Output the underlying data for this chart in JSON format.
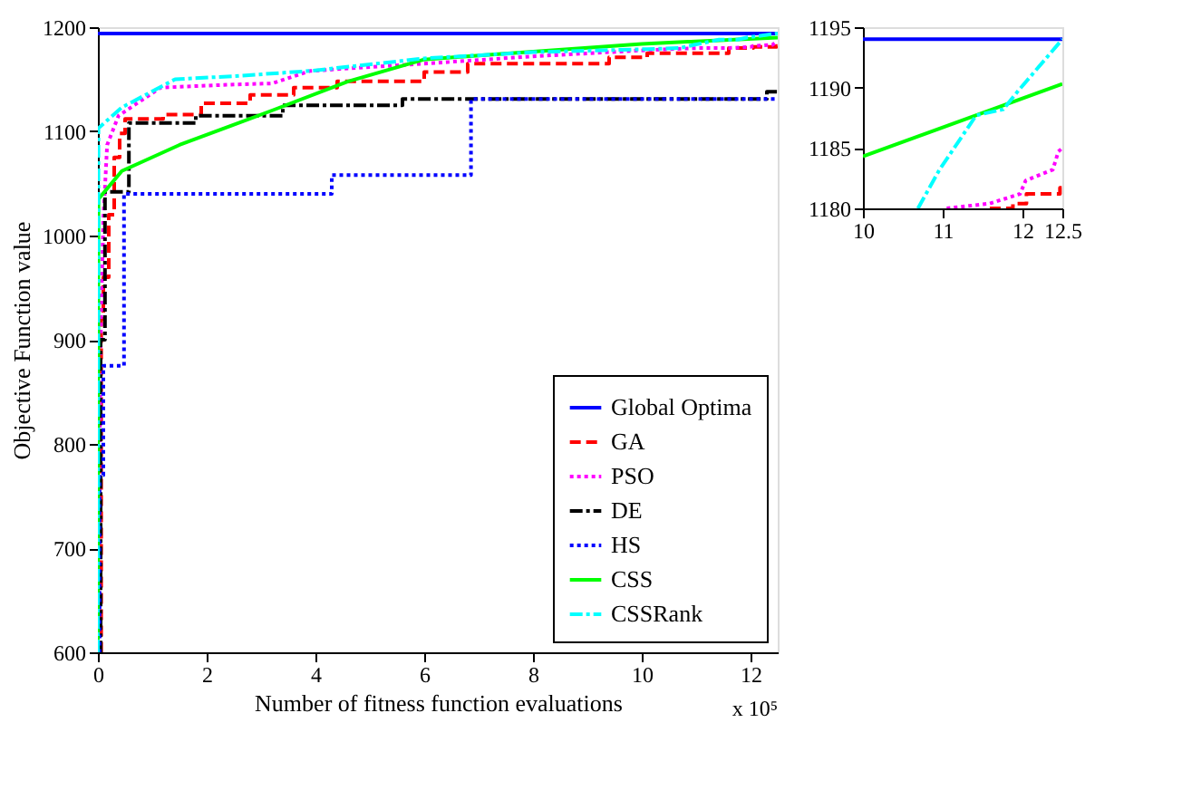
{
  "chart_data": [
    {
      "type": "line",
      "xlabel": "Number of fitness function evaluations",
      "ylabel": "Objective Function value",
      "xlim": [
        0,
        12.5
      ],
      "ylim": [
        600,
        1200
      ],
      "xticks": [
        0,
        2,
        4,
        6,
        8,
        10,
        12
      ],
      "yticks": [
        600,
        700,
        800,
        900,
        1000,
        1100,
        1200
      ],
      "grid": false,
      "legend": "bottom right",
      "annotations": [
        "x 10⁵"
      ],
      "series": [
        {
          "name": "Global Optima",
          "color": "#0000ff",
          "type": "line",
          "line_style": "solid",
          "x": [
            0,
            12.5
          ],
          "values": [
            1194,
            1194
          ]
        },
        {
          "name": "GA",
          "color": "#ff0000",
          "type": "step",
          "line_style": "dashed",
          "x": [
            0.05,
            0.06,
            0.1,
            0.2,
            0.3,
            0.4,
            0.5,
            1.2,
            1.9,
            2.8,
            3.6,
            4.4,
            6.0,
            6.8,
            9.4,
            10.1,
            11.6,
            12.05,
            12.47,
            12.5
          ],
          "values": [
            600,
            920,
            960,
            1020,
            1075,
            1098,
            1112,
            1116,
            1127,
            1135,
            1142,
            1148,
            1157,
            1165,
            1171,
            1175,
            1180,
            1181,
            1182,
            1182
          ]
        },
        {
          "name": "PSO",
          "color": "#ff00ff",
          "type": "line",
          "line_style": "dotted",
          "x": [
            0,
            0.05,
            0.1,
            0.17,
            0.38,
            1.15,
            2.5,
            3.2,
            3.9,
            6.0,
            8,
            10.1,
            11.05,
            11.6,
            12.0,
            12.05,
            12.4,
            12.45,
            12.5
          ],
          "values": [
            600,
            900,
            1015,
            1087,
            1115,
            1142,
            1145,
            1146,
            1158,
            1165,
            1172,
            1178,
            1180,
            1180,
            1181,
            1182,
            1183,
            1185,
            1185
          ]
        },
        {
          "name": "DE",
          "color": "#000000",
          "type": "step",
          "line_style": "dashdot",
          "x": [
            0.03,
            0.05,
            0.13,
            0.57,
            1.8,
            3.4,
            5.6,
            12.3,
            12.5
          ],
          "values": [
            600,
            900,
            1042,
            1108,
            1115,
            1125,
            1131,
            1138,
            1138
          ]
        },
        {
          "name": "HS",
          "color": "#0000ff",
          "type": "step",
          "line_style": "dotted",
          "x": [
            0.02,
            0.03,
            0.1,
            0.48,
            4.3,
            6.86,
            12.5
          ],
          "values": [
            600,
            770,
            875,
            1040,
            1058,
            1131,
            1131
          ]
        },
        {
          "name": "CSS",
          "color": "#00ff00",
          "type": "line",
          "line_style": "solid",
          "x": [
            0,
            0.01,
            0.44,
            1.5,
            3.2,
            4.6,
            6.0,
            7.3,
            10,
            12.5
          ],
          "values": [
            600,
            1035,
            1062,
            1087,
            1120,
            1148,
            1169,
            1174,
            1184,
            1190
          ]
        },
        {
          "name": "CSSRank",
          "color": "#00ffff",
          "type": "line",
          "line_style": "dashdot",
          "x": [
            0,
            0.01,
            0.44,
            1.42,
            2.5,
            3.9,
            6.0,
            8,
            10.1,
            10.7,
            10.96,
            11.42,
            11.76,
            11.93,
            12.5
          ],
          "values": [
            600,
            1103,
            1123,
            1150,
            1153,
            1158,
            1170,
            1176,
            1179,
            1180,
            1183,
            1188,
            1188,
            1190,
            1194
          ]
        }
      ]
    },
    {
      "type": "line",
      "xlim": [
        10,
        12.5
      ],
      "ylim": [
        1180,
        1195
      ],
      "xticks": [
        10,
        11,
        12,
        12.5
      ],
      "yticks": [
        1180,
        1185,
        1190,
        1195
      ],
      "grid": false,
      "series": [
        {
          "color": "#0000ff",
          "type": "line",
          "line_style": "solid",
          "x": [
            10,
            12.5
          ],
          "values": [
            1194,
            1194
          ]
        },
        {
          "color": "#00ff00",
          "type": "line",
          "line_style": "solid",
          "x": [
            10,
            12.5
          ],
          "values": [
            1184.3,
            1190.3
          ]
        },
        {
          "color": "#00ffff",
          "type": "line",
          "line_style": "dashdot",
          "x": [
            10.69,
            10.96,
            11.42,
            11.76,
            11.93,
            12.5
          ],
          "values": [
            1180,
            1183.2,
            1187.7,
            1188.2,
            1189.6,
            1194
          ]
        },
        {
          "color": "#ff00ff",
          "type": "line",
          "line_style": "dotted",
          "x": [
            11.05,
            11.59,
            11.97,
            12.04,
            12.38,
            12.45,
            12.5
          ],
          "values": [
            1180,
            1180.4,
            1181.2,
            1182.3,
            1183.2,
            1184.7,
            1185
          ]
        },
        {
          "color": "#ff0000",
          "type": "step",
          "line_style": "dashed",
          "x": [
            11.59,
            11.88,
            12.05,
            12.47,
            12.5
          ],
          "values": [
            1180,
            1180.4,
            1181.2,
            1181.7,
            1182
          ]
        }
      ]
    }
  ]
}
